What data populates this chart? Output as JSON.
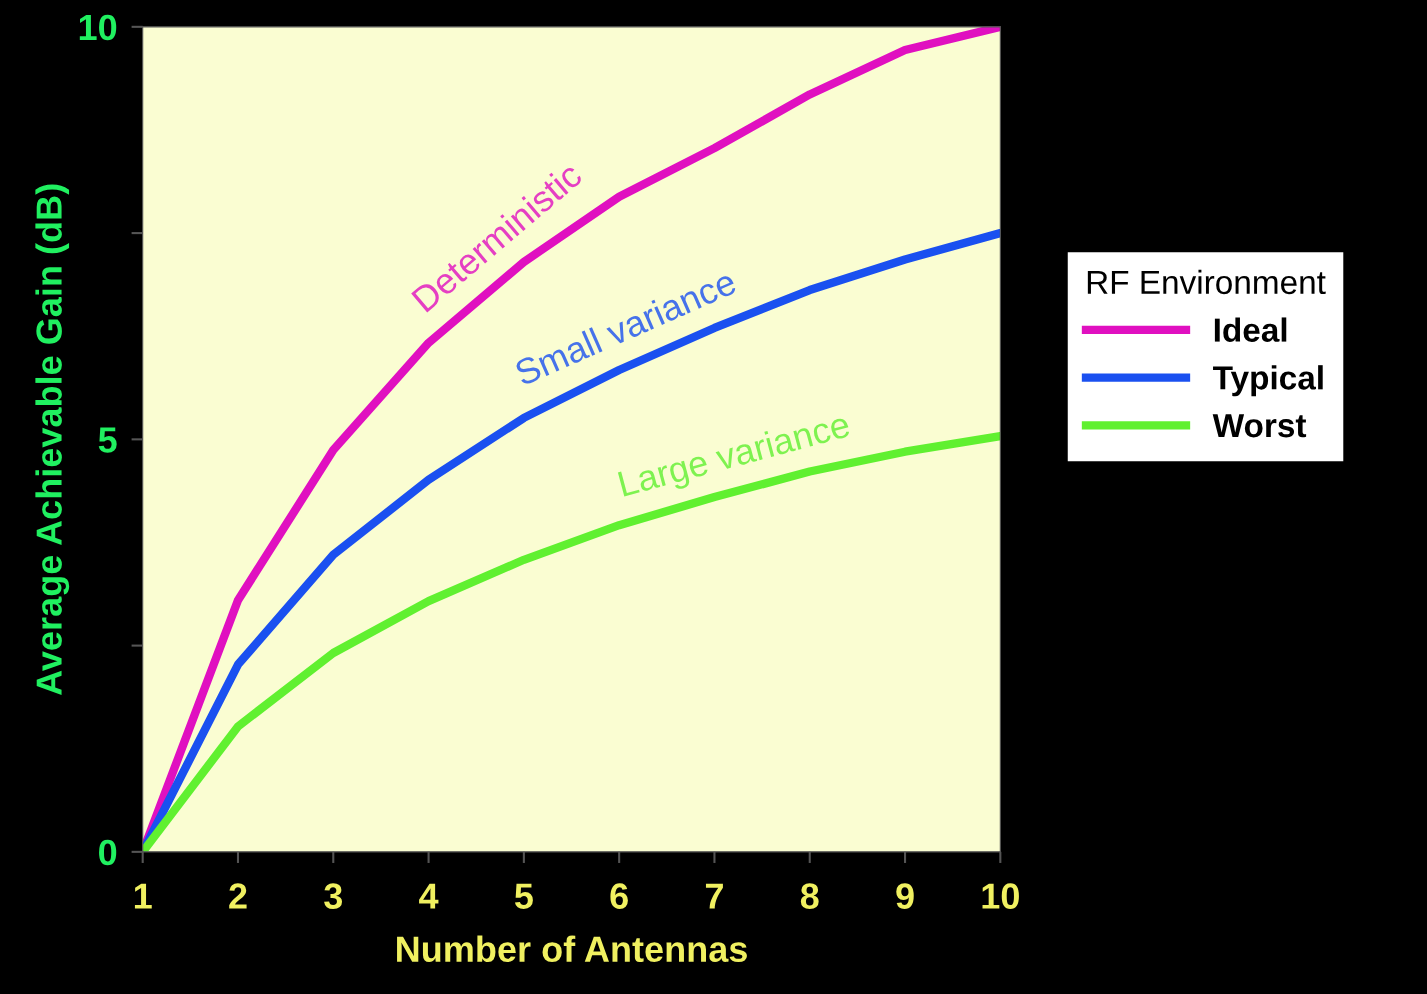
{
  "chart_data": {
    "type": "line",
    "xlabel": "Number of Antennas",
    "ylabel": "Average Achievable Gain (dB)",
    "legend_title": "RF Environment",
    "x": [
      1,
      2,
      3,
      4,
      5,
      6,
      7,
      8,
      9,
      10
    ],
    "xlim": [
      1,
      10
    ],
    "xticks": [
      1,
      2,
      3,
      4,
      5,
      6,
      7,
      8,
      9,
      10
    ],
    "ylim": [
      0,
      10
    ],
    "yticks": [
      0,
      {
        "value": 2.5,
        "label": null
      },
      5,
      {
        "value": 7.5,
        "label": null
      },
      10
    ],
    "series": [
      {
        "name": "Ideal",
        "color": "#e010c0",
        "values": [
          0,
          3.05,
          4.87,
          6.17,
          7.15,
          7.94,
          8.53,
          9.18,
          9.72,
          10
        ]
      },
      {
        "name": "Typical",
        "color": "#1a50f0",
        "values": [
          0,
          2.27,
          3.6,
          4.51,
          5.26,
          5.84,
          6.35,
          6.81,
          7.18,
          7.5
        ]
      },
      {
        "name": "Worst",
        "color": "#60f030",
        "values": [
          0,
          1.52,
          2.41,
          3.04,
          3.54,
          3.96,
          4.3,
          4.61,
          4.85,
          5.04
        ]
      }
    ],
    "annotations": [
      "Deterministic",
      "Small variance",
      "Large variance"
    ],
    "legend": "right",
    "grid": false,
    "marker": "none",
    "line_style": "solid"
  }
}
